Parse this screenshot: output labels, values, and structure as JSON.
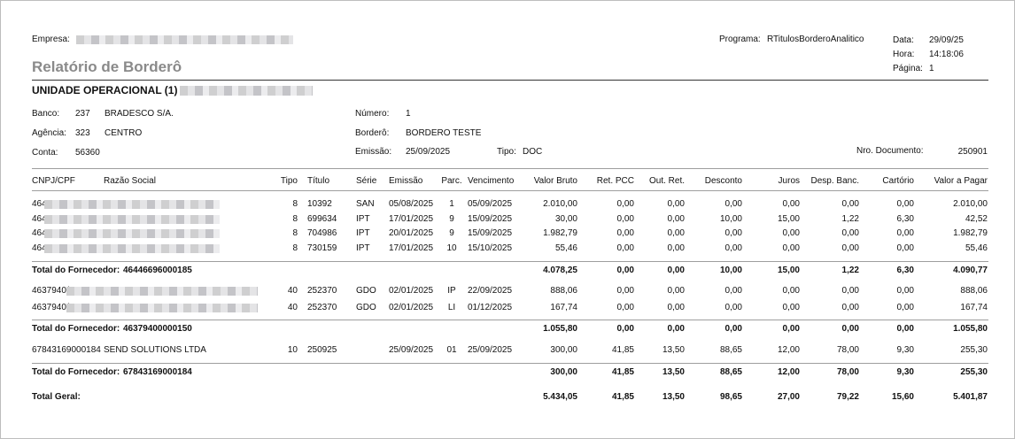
{
  "header": {
    "empresa_label": "Empresa:",
    "title": "Relatório de Borderô",
    "programa_label": "Programa:",
    "programa": "RTitulosBorderoAnalitico",
    "data_label": "Data:",
    "data": "29/09/25",
    "hora_label": "Hora:",
    "hora": "14:18:06",
    "pagina_label": "Página:",
    "pagina": "1",
    "unidade": "UNIDADE OPERACIONAL (1)"
  },
  "info": {
    "banco_label": "Banco:",
    "banco_codigo": "237",
    "banco_nome": "BRADESCO S/A.",
    "agencia_label": "Agência:",
    "agencia_codigo": "323",
    "agencia_nome": "CENTRO",
    "conta_label": "Conta:",
    "conta": "56360",
    "numero_label": "Número:",
    "numero": "1",
    "bordero_label": "Borderô:",
    "bordero": "BORDERO TESTE",
    "emissao_label": "Emissão:",
    "emissao": "25/09/2025",
    "tipo_label": "Tipo:",
    "tipo": "DOC",
    "nro_documento_label": "Nro. Documento:",
    "nro_documento": "250901"
  },
  "table": {
    "columns": [
      "CNPJ/CPF",
      "Razão Social",
      "Tipo",
      "Título",
      "Série",
      "Emissão",
      "Parc.",
      "Vencimento",
      "Valor Bruto",
      "Ret. PCC",
      "Out. Ret.",
      "Desconto",
      "Juros",
      "Desp. Banc.",
      "Cartório",
      "Valor a Pagar"
    ],
    "groups": [
      {
        "rows": [
          {
            "cnpj": "464",
            "razao": "",
            "tipo": "8",
            "titulo": "10392",
            "serie": "SAN",
            "emissao": "05/08/2025",
            "parc": "1",
            "vencimento": "05/09/2025",
            "valores": [
              "2.010,00",
              "0,00",
              "0,00",
              "0,00",
              "0,00",
              "0,00",
              "0,00",
              "2.010,00"
            ]
          },
          {
            "cnpj": "464",
            "razao": "",
            "tipo": "8",
            "titulo": "699634",
            "serie": "IPT",
            "emissao": "17/01/2025",
            "parc": "9",
            "vencimento": "15/09/2025",
            "valores": [
              "30,00",
              "0,00",
              "0,00",
              "10,00",
              "15,00",
              "1,22",
              "6,30",
              "42,52"
            ]
          },
          {
            "cnpj": "464",
            "razao": "",
            "tipo": "8",
            "titulo": "704986",
            "serie": "IPT",
            "emissao": "20/01/2025",
            "parc": "9",
            "vencimento": "15/09/2025",
            "valores": [
              "1.982,79",
              "0,00",
              "0,00",
              "0,00",
              "0,00",
              "0,00",
              "0,00",
              "1.982,79"
            ]
          },
          {
            "cnpj": "464",
            "razao": "",
            "tipo": "8",
            "titulo": "730159",
            "serie": "IPT",
            "emissao": "17/01/2025",
            "parc": "10",
            "vencimento": "15/10/2025",
            "valores": [
              "55,46",
              "0,00",
              "0,00",
              "0,00",
              "0,00",
              "0,00",
              "0,00",
              "55,46"
            ]
          }
        ],
        "total_label": "Total do Fornecedor:",
        "total_cnpj": "46446696000185",
        "totals": [
          "4.078,25",
          "0,00",
          "0,00",
          "10,00",
          "15,00",
          "1,22",
          "6,30",
          "4.090,77"
        ]
      },
      {
        "rows": [
          {
            "cnpj": "4637940(",
            "razao": "",
            "tipo": "40",
            "titulo": "252370",
            "serie": "GDO",
            "emissao": "02/01/2025",
            "parc": "IP",
            "vencimento": "22/09/2025",
            "valores": [
              "888,06",
              "0,00",
              "0,00",
              "0,00",
              "0,00",
              "0,00",
              "0,00",
              "888,06"
            ]
          },
          {
            "cnpj": "4637940(",
            "razao": "",
            "tipo": "40",
            "titulo": "252370",
            "serie": "GDO",
            "emissao": "02/01/2025",
            "parc": "LI",
            "vencimento": "01/12/2025",
            "valores": [
              "167,74",
              "0,00",
              "0,00",
              "0,00",
              "0,00",
              "0,00",
              "0,00",
              "167,74"
            ]
          }
        ],
        "total_label": "Total do Fornecedor:",
        "total_cnpj": "46379400000150",
        "totals": [
          "1.055,80",
          "0,00",
          "0,00",
          "0,00",
          "0,00",
          "0,00",
          "0,00",
          "1.055,80"
        ]
      },
      {
        "rows": [
          {
            "cnpj": "67843169000184",
            "razao": "SEND SOLUTIONS LTDA",
            "tipo": "10",
            "titulo": "250925",
            "serie": "",
            "emissao": "25/09/2025",
            "parc": "01",
            "vencimento": "25/09/2025",
            "valores": [
              "300,00",
              "41,85",
              "13,50",
              "88,65",
              "12,00",
              "78,00",
              "9,30",
              "255,30"
            ]
          }
        ],
        "total_label": "Total do Fornecedor:",
        "total_cnpj": "67843169000184",
        "totals": [
          "300,00",
          "41,85",
          "13,50",
          "88,65",
          "12,00",
          "78,00",
          "9,30",
          "255,30"
        ]
      }
    ],
    "grand_total_label": "Total Geral:",
    "grand_totals": [
      "5.434,05",
      "41,85",
      "13,50",
      "98,65",
      "27,00",
      "79,22",
      "15,60",
      "5.401,87"
    ]
  }
}
